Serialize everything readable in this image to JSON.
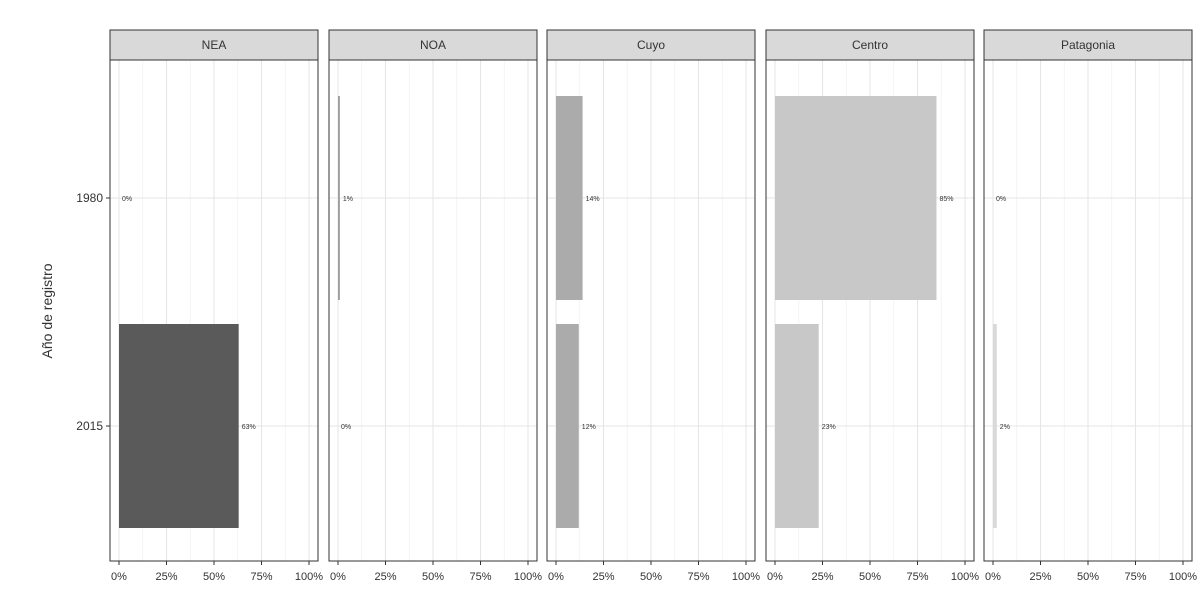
{
  "chart_data": {
    "type": "bar",
    "orientation": "horizontal",
    "facets": [
      "NEA",
      "NOA",
      "Cuyo",
      "Centro",
      "Patagonia"
    ],
    "categories": [
      "1980",
      "2015"
    ],
    "ylabel": "Año de registro",
    "xlim": [
      0,
      100
    ],
    "xticks": [
      "0%",
      "25%",
      "50%",
      "75%",
      "100%"
    ],
    "grid": true,
    "values": {
      "NEA": [
        0,
        63
      ],
      "NOA": [
        1,
        0
      ],
      "Cuyo": [
        14,
        12
      ],
      "Centro": [
        85,
        23
      ],
      "Patagonia": [
        0,
        2
      ]
    },
    "labels": {
      "NEA": [
        "0%",
        "63%"
      ],
      "NOA": [
        "1%",
        "0%"
      ],
      "Cuyo": [
        "14%",
        "12%"
      ],
      "Centro": [
        "85%",
        "23%"
      ],
      "Patagonia": [
        "0%",
        "2%"
      ]
    },
    "colors": {
      "NEA": "#5a5a5a",
      "NOA": "#9e9e9e",
      "Cuyo": "#ababab",
      "Centro": "#c8c8c8",
      "Patagonia": "#d9d9d9"
    },
    "strip_fill": "#d9d9d9"
  }
}
